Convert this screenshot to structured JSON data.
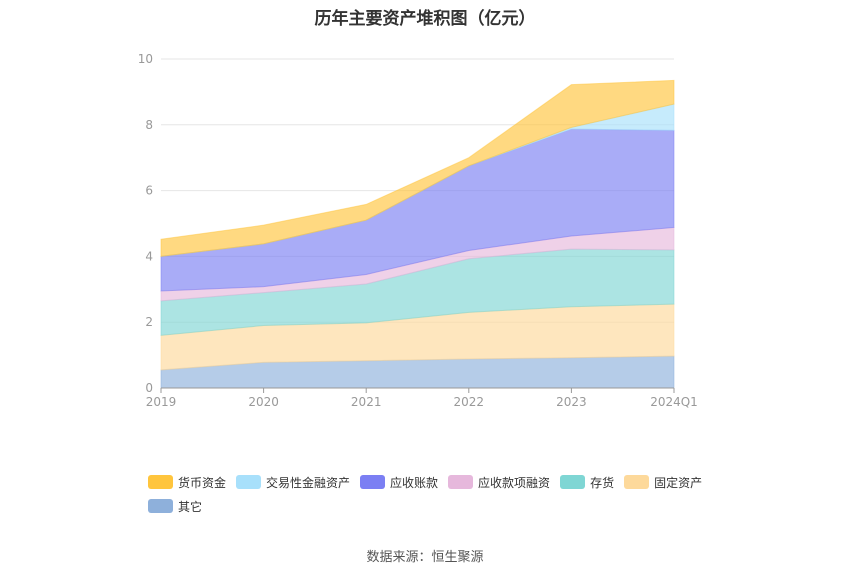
{
  "title": "历年主要资产堆积图（亿元）",
  "source_note": "数据来源：恒生聚源",
  "chart_data": {
    "type": "area",
    "stacked": true,
    "categories": [
      "2019",
      "2020",
      "2021",
      "2022",
      "2023",
      "2024Q1"
    ],
    "ylim": [
      0,
      10
    ],
    "yticks": [
      0,
      2,
      4,
      6,
      8,
      10
    ],
    "grid": true,
    "legend_position": "bottom-left",
    "series": [
      {
        "name": "其它",
        "color": "#8eb0db",
        "values": [
          0.55,
          0.78,
          0.83,
          0.88,
          0.92,
          0.97
        ]
      },
      {
        "name": "固定资产",
        "color": "#fdd99b",
        "values": [
          1.05,
          1.12,
          1.15,
          1.42,
          1.55,
          1.58
        ]
      },
      {
        "name": "存货",
        "color": "#7fd6d4",
        "values": [
          1.05,
          1.0,
          1.18,
          1.63,
          1.75,
          1.65
        ]
      },
      {
        "name": "应收款项融资",
        "color": "#e6b8dc",
        "values": [
          0.3,
          0.18,
          0.29,
          0.25,
          0.4,
          0.68
        ]
      },
      {
        "name": "应收账款",
        "color": "#7b7ff3",
        "values": [
          1.05,
          1.3,
          1.65,
          2.57,
          3.25,
          2.95
        ]
      },
      {
        "name": "交易性金融资产",
        "color": "#a8e0fb",
        "values": [
          0.0,
          0.0,
          0.0,
          0.0,
          0.05,
          0.8
        ]
      },
      {
        "name": "货币资金",
        "color": "#ffc53d",
        "values": [
          0.52,
          0.57,
          0.48,
          0.25,
          1.3,
          0.72
        ]
      }
    ]
  }
}
